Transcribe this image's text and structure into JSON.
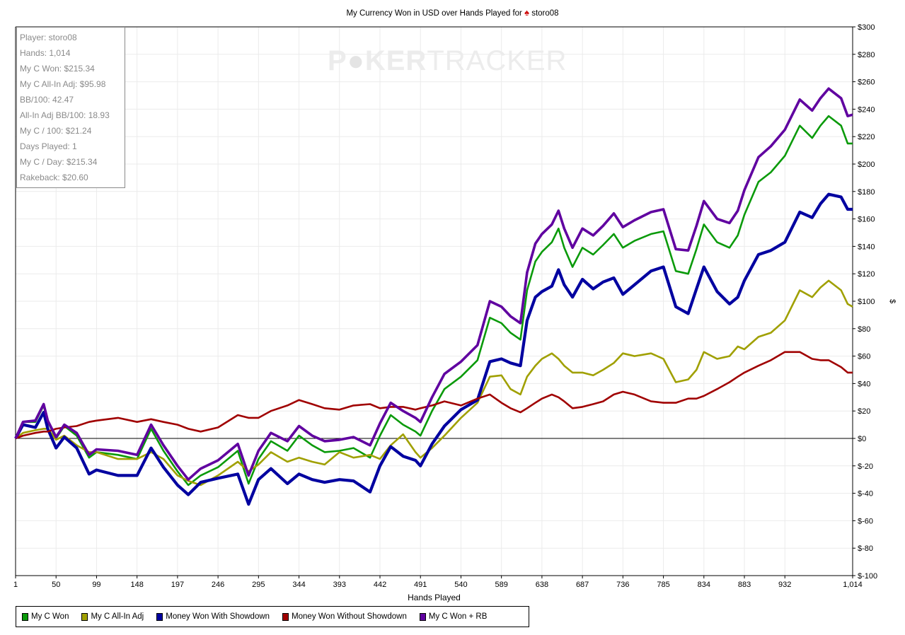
{
  "title": {
    "prefix": "My Currency Won in USD over Hands Played for",
    "player": "storo08",
    "icon": "spade-icon"
  },
  "watermark": {
    "bold": "POKER",
    "thin": "TRACKER"
  },
  "info_box": [
    "Player: storo08",
    "Hands: 1,014",
    "My C Won: $215.34",
    "My C All-In Adj: $95.98",
    "BB/100: 42.47",
    "All-In Adj BB/100: 18.93",
    "My C / 100: $21.24",
    "Days Played: 1",
    "My C / Day: $215.34",
    "Rakeback: $20.60"
  ],
  "chart_data": {
    "type": "line",
    "title": "My Currency Won in USD over Hands Played for storo08",
    "xlabel": "Hands Played",
    "ylabel": "$",
    "xlim": [
      1,
      1014
    ],
    "ylim": [
      -100,
      300
    ],
    "grid": true,
    "legend_position": "bottom-left",
    "x_ticks": [
      1,
      50,
      99,
      148,
      197,
      246,
      295,
      344,
      393,
      442,
      491,
      540,
      589,
      638,
      687,
      736,
      785,
      834,
      883,
      932,
      1014
    ],
    "x_tick_labels": [
      "1",
      "50",
      "99",
      "148",
      "197",
      "246",
      "295",
      "344",
      "393",
      "442",
      "491",
      "540",
      "589",
      "638",
      "687",
      "736",
      "785",
      "834",
      "883",
      "932",
      "1,014"
    ],
    "y_ticks": [
      300,
      280,
      260,
      240,
      220,
      200,
      180,
      160,
      140,
      120,
      100,
      80,
      60,
      40,
      20,
      0,
      -20,
      -40,
      -60,
      -80,
      -100
    ],
    "y_tick_labels": [
      "$300",
      "$280",
      "$260",
      "$240",
      "$220",
      "$200",
      "$180",
      "$160",
      "$140",
      "$120",
      "$100",
      "$80",
      "$60",
      "$40",
      "$20",
      "$0",
      "$-20",
      "$-40",
      "$-60",
      "$-80",
      "$-100"
    ],
    "x": [
      1,
      10,
      25,
      35,
      40,
      50,
      60,
      75,
      90,
      99,
      125,
      148,
      165,
      180,
      197,
      210,
      225,
      246,
      270,
      283,
      295,
      310,
      330,
      344,
      360,
      375,
      393,
      410,
      430,
      442,
      455,
      470,
      485,
      491,
      505,
      520,
      540,
      560,
      575,
      589,
      600,
      612,
      620,
      630,
      638,
      650,
      658,
      665,
      675,
      687,
      700,
      712,
      725,
      736,
      750,
      770,
      785,
      800,
      815,
      825,
      834,
      850,
      865,
      875,
      883,
      900,
      915,
      932,
      950,
      965,
      975,
      985,
      1000,
      1008,
      1014
    ],
    "series": [
      {
        "name": "My C Won",
        "color": "#0a9a0a",
        "width": 2.6,
        "values": [
          0,
          12,
          12,
          24,
          12,
          0,
          9,
          2,
          -14,
          -10,
          -12,
          -15,
          7,
          -9,
          -24,
          -34,
          -27,
          -21,
          -9,
          -33,
          -15,
          -2,
          -9,
          2,
          -5,
          -10,
          -9,
          -7,
          -14,
          2,
          17,
          10,
          5,
          2,
          20,
          36,
          45,
          57,
          88,
          84,
          77,
          72,
          108,
          129,
          136,
          143,
          153,
          139,
          125,
          139,
          134,
          141,
          149,
          139,
          144,
          149,
          151,
          122,
          120,
          138,
          156,
          143,
          139,
          148,
          163,
          187,
          194,
          206,
          228,
          219,
          228,
          235,
          228,
          215,
          215
        ]
      },
      {
        "name": "My C All-In Adj",
        "color": "#a0a000",
        "width": 2.6,
        "values": [
          0,
          4,
          6,
          7,
          7,
          -1,
          2,
          -5,
          -10,
          -10,
          -15,
          -15,
          -10,
          -15,
          -27,
          -31,
          -34,
          -27,
          -17,
          -24,
          -19,
          -10,
          -17,
          -14,
          -17,
          -19,
          -10,
          -14,
          -12,
          -15,
          -5,
          3,
          -10,
          -14,
          -7,
          2,
          15,
          26,
          45,
          46,
          36,
          32,
          45,
          53,
          58,
          62,
          58,
          53,
          48,
          48,
          46,
          50,
          55,
          62,
          60,
          62,
          58,
          41,
          43,
          50,
          63,
          58,
          60,
          67,
          65,
          74,
          77,
          86,
          108,
          103,
          110,
          115,
          108,
          98,
          96
        ]
      },
      {
        "name": "Money Won With Showdown",
        "color": "#0000a0",
        "width": 4.2,
        "values": [
          0,
          10,
          8,
          19,
          7,
          -7,
          1,
          -7,
          -26,
          -23,
          -27,
          -27,
          -7,
          -21,
          -34,
          -41,
          -32,
          -29,
          -26,
          -48,
          -30,
          -22,
          -33,
          -26,
          -30,
          -32,
          -30,
          -31,
          -39,
          -20,
          -6,
          -13,
          -16,
          -20,
          -4,
          9,
          21,
          28,
          56,
          58,
          55,
          53,
          86,
          103,
          107,
          111,
          123,
          112,
          103,
          116,
          109,
          114,
          117,
          105,
          112,
          122,
          125,
          96,
          91,
          109,
          125,
          107,
          98,
          103,
          115,
          134,
          137,
          143,
          165,
          161,
          171,
          178,
          176,
          167,
          167
        ]
      },
      {
        "name": "Money Won Without Showdown",
        "color": "#a00000",
        "width": 2.6,
        "values": [
          0,
          2,
          4,
          5,
          5,
          7,
          8,
          9,
          12,
          13,
          15,
          12,
          14,
          12,
          10,
          7,
          5,
          8,
          17,
          15,
          15,
          20,
          24,
          28,
          25,
          22,
          21,
          24,
          25,
          22,
          23,
          23,
          21,
          22,
          24,
          27,
          24,
          29,
          32,
          26,
          22,
          19,
          22,
          26,
          29,
          32,
          30,
          27,
          22,
          23,
          25,
          27,
          32,
          34,
          32,
          27,
          26,
          26,
          29,
          29,
          31,
          36,
          41,
          45,
          48,
          53,
          57,
          63,
          63,
          58,
          57,
          57,
          52,
          48,
          48
        ]
      },
      {
        "name": "My C Won + RB",
        "color": "#6000a0",
        "width": 3.6,
        "values": [
          0,
          12,
          13,
          25,
          13,
          1,
          10,
          4,
          -12,
          -8,
          -9,
          -12,
          10,
          -5,
          -20,
          -30,
          -22,
          -16,
          -4,
          -27,
          -9,
          4,
          -2,
          9,
          2,
          -2,
          -1,
          1,
          -5,
          11,
          26,
          20,
          15,
          12,
          30,
          47,
          56,
          68,
          100,
          96,
          89,
          84,
          121,
          142,
          149,
          156,
          166,
          153,
          139,
          153,
          148,
          155,
          164,
          154,
          159,
          165,
          167,
          138,
          137,
          155,
          173,
          160,
          157,
          166,
          181,
          205,
          213,
          225,
          247,
          239,
          248,
          255,
          248,
          235,
          236
        ]
      }
    ]
  }
}
